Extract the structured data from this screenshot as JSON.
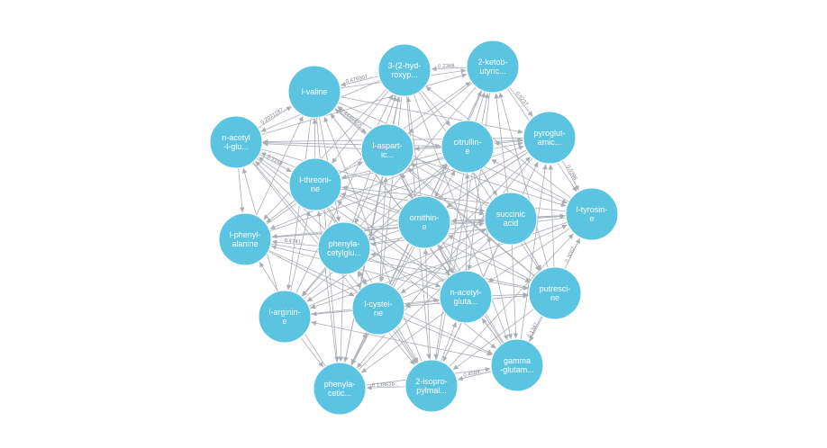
{
  "graph": {
    "nodes": [
      {
        "id": "valine",
        "lines": [
          "l-valine"
        ]
      },
      {
        "id": "hydroxyp",
        "lines": [
          "3-(2-hyd-",
          "roxyp..."
        ]
      },
      {
        "id": "ketobutyric",
        "lines": [
          "2-ketob-",
          "utyric..."
        ]
      },
      {
        "id": "acetylglu",
        "lines": [
          "n-acetyl",
          "-l-glu..."
        ]
      },
      {
        "id": "aspartic",
        "lines": [
          "l-aspart-",
          "ic..."
        ]
      },
      {
        "id": "citrulline",
        "lines": [
          "citrullin-",
          "e"
        ]
      },
      {
        "id": "pyroglutamic",
        "lines": [
          "pyroglut-",
          "amic..."
        ]
      },
      {
        "id": "threonine",
        "lines": [
          "l-threoni-",
          "ne"
        ]
      },
      {
        "id": "tyrosine",
        "lines": [
          "l-tyrosin-",
          "e"
        ]
      },
      {
        "id": "phenylalanine",
        "lines": [
          "l-phenyl-",
          "alanine"
        ]
      },
      {
        "id": "ornithine",
        "lines": [
          "ornithin-",
          "e"
        ]
      },
      {
        "id": "succinic",
        "lines": [
          "succinic",
          "acid"
        ]
      },
      {
        "id": "phenylacetylglu",
        "lines": [
          "phenyla-",
          "cetylglu..."
        ]
      },
      {
        "id": "putrescine",
        "lines": [
          "putresci-",
          "ne"
        ]
      },
      {
        "id": "arginine",
        "lines": [
          "l-arginin-",
          "e"
        ]
      },
      {
        "id": "cysteine",
        "lines": [
          "l-cystei-",
          "ne"
        ]
      },
      {
        "id": "acetylgluta",
        "lines": [
          "n-acetyl-",
          "gluta..."
        ]
      },
      {
        "id": "gammaglutam",
        "lines": [
          "gamma",
          "-glutam..."
        ]
      },
      {
        "id": "phenylacetic",
        "lines": [
          "phenyla-",
          "cetic..."
        ]
      },
      {
        "id": "isopropylmal",
        "lines": [
          "2-isopro-",
          "pylmal..."
        ]
      }
    ],
    "edge_labels": [
      "0.476907...",
      "0.2368...",
      "0.2071287...",
      "0.0398...",
      "0.3062...",
      "0.4589...",
      "0.139629...",
      "0.3168...",
      "0.4448422...",
      "0.5237...",
      "0.1347...",
      "0.4741..."
    ]
  }
}
